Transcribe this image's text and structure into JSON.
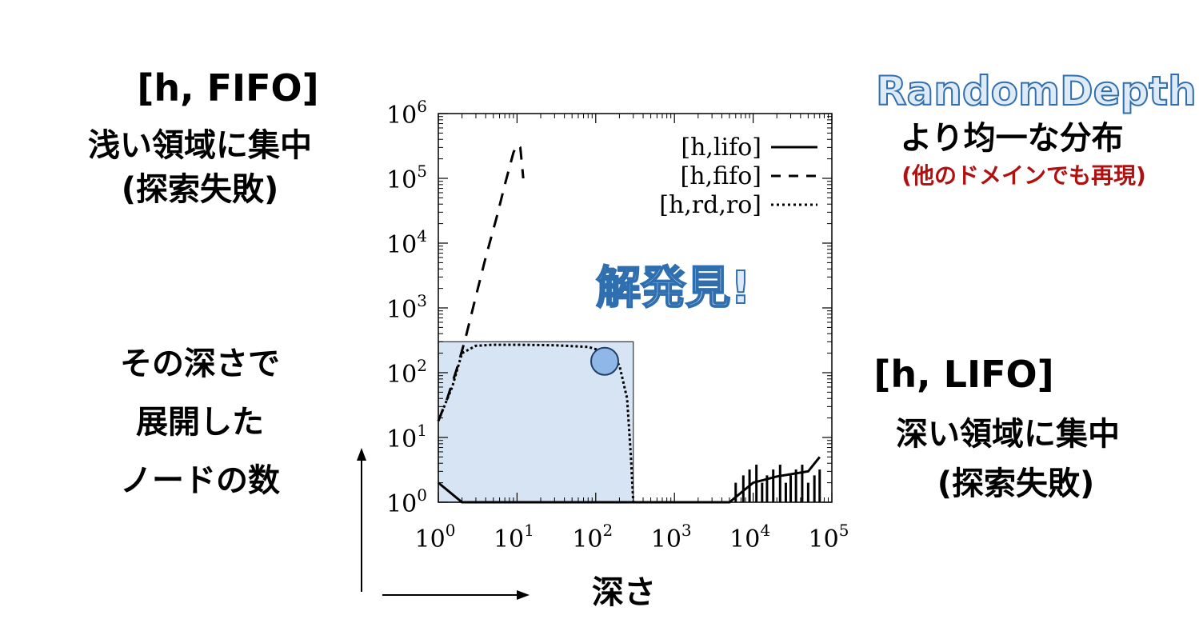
{
  "annotations": {
    "left_top_title": "[h, FIFO]",
    "left_top_line1": "浅い領域に集中",
    "left_top_line2": "(探索失敗)",
    "right_top_title": "RandomDepth",
    "right_top_line1": "より均一な分布",
    "right_top_line2": "(他のドメインでも再現)",
    "center_label": "解発見!",
    "right_mid_title": "[h, LIFO]",
    "right_mid_line1": "深い領域に集中",
    "right_mid_line2": "(探索失敗)",
    "y_axis_line1": "その深さで",
    "y_axis_line2": "展開した",
    "y_axis_line3": "ノードの数",
    "x_axis_label": "深さ"
  },
  "colors": {
    "highlight_fill": "#d6e4f3",
    "highlight_stroke": "#4f7fb3",
    "marker_fill": "#8fb8e8",
    "red_text": "#b01010",
    "outline_text": "#2f6fb0"
  },
  "chart_data": {
    "type": "line",
    "x_scale": "log",
    "y_scale": "log",
    "xlim": [
      1,
      100000
    ],
    "ylim": [
      1,
      1000000
    ],
    "x_ticks": [
      "10^0",
      "10^1",
      "10^2",
      "10^3",
      "10^4",
      "10^5"
    ],
    "y_ticks": [
      "10^0",
      "10^1",
      "10^2",
      "10^3",
      "10^4",
      "10^5",
      "10^6"
    ],
    "legend_position": "top-right",
    "series": [
      {
        "name": "[h,lifo]",
        "style": "solid",
        "points": [
          [
            1,
            2
          ],
          [
            2,
            1
          ],
          [
            10,
            1
          ],
          [
            100,
            1
          ],
          [
            1000,
            1
          ],
          [
            5000,
            1
          ],
          [
            10000,
            2
          ],
          [
            20000,
            2.5
          ],
          [
            50000,
            3
          ],
          [
            70000,
            5
          ]
        ]
      },
      {
        "name": "[h,fifo]",
        "style": "dashed",
        "points": [
          [
            1,
            18
          ],
          [
            1.3,
            40
          ],
          [
            1.7,
            110
          ],
          [
            2.2,
            330
          ],
          [
            3,
            1500
          ],
          [
            4,
            6000
          ],
          [
            5.5,
            25000
          ],
          [
            7,
            80000
          ],
          [
            9,
            250000
          ],
          [
            10,
            330000
          ],
          [
            11,
            300000
          ],
          [
            12,
            100000
          ]
        ]
      },
      {
        "name": "[h,rd,ro]",
        "style": "dotted",
        "points": [
          [
            1,
            18
          ],
          [
            1.5,
            60
          ],
          [
            2,
            200
          ],
          [
            3,
            260
          ],
          [
            5,
            270
          ],
          [
            10,
            270
          ],
          [
            30,
            265
          ],
          [
            80,
            250
          ],
          [
            150,
            200
          ],
          [
            200,
            130
          ],
          [
            250,
            40
          ],
          [
            280,
            5
          ],
          [
            300,
            1
          ]
        ]
      }
    ],
    "highlight_region": {
      "x": [
        1,
        300
      ],
      "y": [
        1,
        300
      ]
    },
    "marker_point": {
      "x": 130,
      "y": 150
    }
  }
}
